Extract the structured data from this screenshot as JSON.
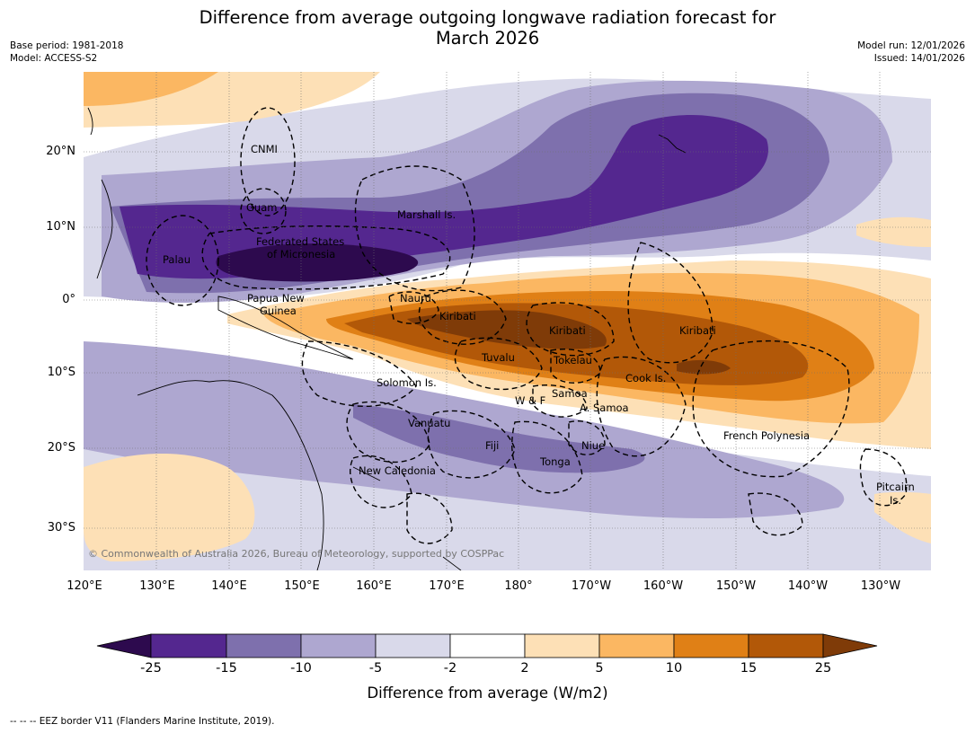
{
  "title_line1": "Difference from average outgoing longwave radiation forecast for",
  "title_line2": "March 2026",
  "meta": {
    "base_period": "Base period: 1981-2018",
    "model": "Model: ACCESS-S2",
    "model_run": "Model run: 12/01/2026",
    "issued": "Issued: 14/01/2026"
  },
  "lat_labels": [
    "20°N",
    "10°N",
    "0°",
    "10°S",
    "20°S",
    "30°S"
  ],
  "lon_labels": [
    "120°E",
    "130°E",
    "140°E",
    "150°E",
    "160°E",
    "170°E",
    "180°",
    "170°W",
    "160°W",
    "150°W",
    "140°W",
    "130°W"
  ],
  "places": {
    "cnmi": "CNMI",
    "guam": "Guam",
    "marshall": "Marshall Is.",
    "fsm": "Federated States",
    "fsm2": "of Micronesia",
    "palau": "Palau",
    "png": "Papua New",
    "png2": "Guinea",
    "nauru": "Nauru",
    "kiribati": "Kiribati",
    "tuvalu": "Tuvalu",
    "tokelau": "Tokelau",
    "cook": "Cook Is.",
    "solomon": "Solomon Is.",
    "wf": "W & F",
    "samoa": "Samoa",
    "asamoa": "A. Samoa",
    "vanuatu": "Vanuatu",
    "fiji": "Fiji",
    "niue": "Niue",
    "tonga": "Tonga",
    "newcal": "New Caledonia",
    "frpoly": "French Polynesia",
    "pitcairn": "Pitcairn",
    "pitcairn2": "Is."
  },
  "copyright": "© Commonwealth of Australia 2026, Bureau of Meteorology, supported by COSPPac",
  "colorbar": {
    "ticks": [
      "-25",
      "-15",
      "-10",
      "-5",
      "-2",
      "2",
      "5",
      "10",
      "15",
      "25"
    ],
    "label": "Difference from average (W/m2)",
    "colors": {
      "lt_neg25": "#2d0a4e",
      "neg25_neg15": "#54278f",
      "neg15_neg10": "#7e70ad",
      "neg10_neg5": "#aea7d0",
      "neg5_neg2": "#d9d9ea",
      "neg2_2": "#ffffff",
      "p2_5": "#fde0b6",
      "p5_10": "#fbb762",
      "p10_15": "#e08016",
      "p15_25": "#b25808",
      "gt25": "#7f3b08"
    }
  },
  "footer": "--  --  -- EEZ border V11 (Flanders Marine Institute, 2019)."
}
